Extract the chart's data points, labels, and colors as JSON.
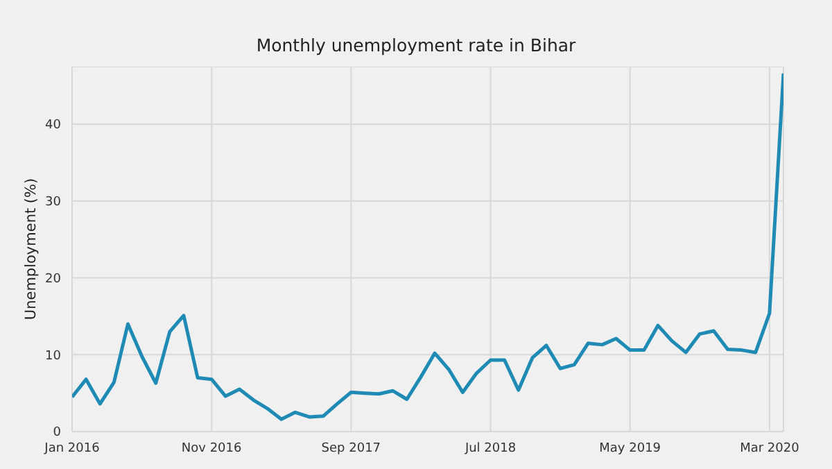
{
  "chart_data": {
    "type": "line",
    "title": "Monthly unemployment rate in Bihar",
    "ylabel": "Unemployment (%)",
    "x": [
      "2016-01",
      "2016-02",
      "2016-03",
      "2016-04",
      "2016-05",
      "2016-06",
      "2016-07",
      "2016-08",
      "2016-09",
      "2016-10",
      "2016-11",
      "2016-12",
      "2017-01",
      "2017-02",
      "2017-03",
      "2017-04",
      "2017-05",
      "2017-06",
      "2017-07",
      "2017-08",
      "2017-09",
      "2017-10",
      "2017-11",
      "2017-12",
      "2018-01",
      "2018-02",
      "2018-03",
      "2018-04",
      "2018-05",
      "2018-06",
      "2018-07",
      "2018-08",
      "2018-09",
      "2018-10",
      "2018-11",
      "2018-12",
      "2019-01",
      "2019-02",
      "2019-03",
      "2019-04",
      "2019-05",
      "2019-06",
      "2019-07",
      "2019-08",
      "2019-09",
      "2019-10",
      "2019-11",
      "2019-12",
      "2020-01",
      "2020-02",
      "2020-03",
      "2020-04"
    ],
    "series": [
      {
        "color": "#1f8bb5",
        "values": [
          4.5,
          6.8,
          3.6,
          6.4,
          14.0,
          9.8,
          6.3,
          13.0,
          15.1,
          7.0,
          6.8,
          4.6,
          5.5,
          4.1,
          3.0,
          1.6,
          2.5,
          1.9,
          2.0,
          3.6,
          5.1,
          5.0,
          4.9,
          5.3,
          4.2,
          7.1,
          10.2,
          8.1,
          5.1,
          7.6,
          9.3,
          9.3,
          5.4,
          9.6,
          11.2,
          8.2,
          8.7,
          11.5,
          11.3,
          12.1,
          10.6,
          10.6,
          13.8,
          11.8,
          10.3,
          12.7,
          13.1,
          10.7,
          10.6,
          10.3,
          15.4,
          46.6
        ]
      }
    ],
    "xlim": [
      "2016-01",
      "2020-04"
    ],
    "xticks": [
      {
        "value": "2016-01",
        "label": "Jan 2016"
      },
      {
        "value": "2016-11",
        "label": "Nov 2016"
      },
      {
        "value": "2017-09",
        "label": "Sep 2017"
      },
      {
        "value": "2018-07",
        "label": "Jul 2018"
      },
      {
        "value": "2019-05",
        "label": "May 2019"
      },
      {
        "value": "2020-03",
        "label": "Mar 2020"
      }
    ],
    "ylim": [
      0,
      47.5
    ],
    "yticks": [
      0,
      10,
      20,
      30,
      40
    ],
    "grid": true,
    "legend": false,
    "marker": "none",
    "line_style": "solid"
  }
}
